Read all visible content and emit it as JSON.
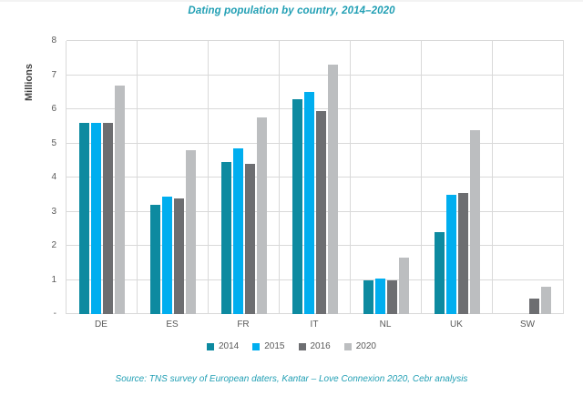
{
  "page": {
    "background": "#ffffff"
  },
  "chart_data": {
    "type": "bar",
    "title": "Dating population by country, 2014–2020",
    "ylabel": "Millions",
    "xlabel": "",
    "ylim": [
      0,
      8
    ],
    "grid": true,
    "legend_position": "bottom",
    "categories": [
      "DE",
      "ES",
      "FR",
      "IT",
      "NL",
      "UK",
      "SW"
    ],
    "series": [
      {
        "name": "2014",
        "color": "#0D8AA0",
        "values": [
          5.6,
          3.2,
          4.45,
          6.3,
          1.0,
          2.4,
          0
        ]
      },
      {
        "name": "2015",
        "color": "#00AEEF",
        "values": [
          5.6,
          3.45,
          4.85,
          6.5,
          1.05,
          3.5,
          0
        ]
      },
      {
        "name": "2016",
        "color": "#6D6E71",
        "values": [
          5.6,
          3.4,
          4.4,
          5.95,
          1.0,
          3.55,
          0.45
        ]
      },
      {
        "name": "2020",
        "color": "#BCBEC0",
        "values": [
          6.7,
          4.8,
          5.75,
          7.3,
          1.65,
          5.4,
          0.8
        ]
      }
    ],
    "yticks": [
      {
        "value": 8,
        "label": "8"
      },
      {
        "value": 7,
        "label": "7"
      },
      {
        "value": 6,
        "label": "6"
      },
      {
        "value": 5,
        "label": "5"
      },
      {
        "value": 4,
        "label": "4"
      },
      {
        "value": 3,
        "label": "3"
      },
      {
        "value": 2,
        "label": "2"
      },
      {
        "value": 1,
        "label": "1"
      },
      {
        "value": 0,
        "label": "-"
      }
    ]
  },
  "source": {
    "text": "Source: TNS survey of European daters, Kantar – Love Connexion 2020, Cebr analysis"
  },
  "colors": {
    "title_text": "#219FB4",
    "axis_text": "#595959",
    "gridline": "#D9D9D9"
  }
}
